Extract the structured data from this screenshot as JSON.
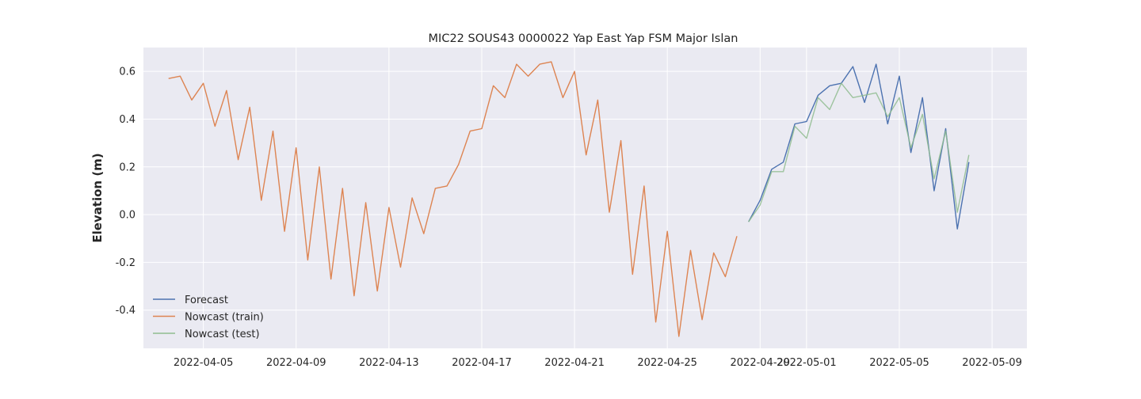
{
  "chart_data": {
    "type": "line",
    "title": "MIC22 SOUS43 0000022 Yap East Yap FSM Major Islan",
    "xlabel": "",
    "ylabel": "Elevation (m)",
    "xlim": [
      "2022-04-02T10:00",
      "2022-05-10T12:00"
    ],
    "ylim": [
      -0.56,
      0.7
    ],
    "x_ticks": [
      "2022-04-05",
      "2022-04-09",
      "2022-04-13",
      "2022-04-17",
      "2022-04-21",
      "2022-04-25",
      "2022-04-29",
      "2022-05-01",
      "2022-05-05",
      "2022-05-09"
    ],
    "y_ticks": [
      -0.4,
      -0.2,
      0.0,
      0.2,
      0.4,
      0.6
    ],
    "grid": true,
    "legend_position": "lower-left",
    "background": "#eaeaf2",
    "series": [
      {
        "name": "Forecast",
        "color": "#4c72b0",
        "x": [
          "2022-04-28T12:00",
          "2022-04-29T00:00",
          "2022-04-29T12:00",
          "2022-04-30T00:00",
          "2022-04-30T12:00",
          "2022-05-01T00:00",
          "2022-05-01T12:00",
          "2022-05-02T00:00",
          "2022-05-02T12:00",
          "2022-05-03T00:00",
          "2022-05-03T12:00",
          "2022-05-04T00:00",
          "2022-05-04T12:00",
          "2022-05-05T00:00",
          "2022-05-05T12:00",
          "2022-05-06T00:00",
          "2022-05-06T12:00",
          "2022-05-07T00:00",
          "2022-05-07T12:00",
          "2022-05-08T00:00"
        ],
        "y": [
          -0.03,
          0.06,
          0.19,
          0.22,
          0.38,
          0.39,
          0.5,
          0.54,
          0.55,
          0.62,
          0.47,
          0.63,
          0.38,
          0.58,
          0.26,
          0.49,
          0.1,
          0.36,
          -0.06,
          0.22
        ]
      },
      {
        "name": "Nowcast (train)",
        "color": "#dd8452",
        "x": [
          "2022-04-03T12:00",
          "2022-04-04T00:00",
          "2022-04-04T12:00",
          "2022-04-05T00:00",
          "2022-04-05T12:00",
          "2022-04-06T00:00",
          "2022-04-06T12:00",
          "2022-04-07T00:00",
          "2022-04-07T12:00",
          "2022-04-08T00:00",
          "2022-04-08T12:00",
          "2022-04-09T00:00",
          "2022-04-09T12:00",
          "2022-04-10T00:00",
          "2022-04-10T12:00",
          "2022-04-11T00:00",
          "2022-04-11T12:00",
          "2022-04-12T00:00",
          "2022-04-12T12:00",
          "2022-04-13T00:00",
          "2022-04-13T12:00",
          "2022-04-14T00:00",
          "2022-04-14T12:00",
          "2022-04-15T00:00",
          "2022-04-15T12:00",
          "2022-04-16T00:00",
          "2022-04-16T12:00",
          "2022-04-17T00:00",
          "2022-04-17T12:00",
          "2022-04-18T00:00",
          "2022-04-18T12:00",
          "2022-04-19T00:00",
          "2022-04-19T12:00",
          "2022-04-20T00:00",
          "2022-04-20T12:00",
          "2022-04-21T00:00",
          "2022-04-21T12:00",
          "2022-04-22T00:00",
          "2022-04-22T12:00",
          "2022-04-23T00:00",
          "2022-04-23T12:00",
          "2022-04-24T00:00",
          "2022-04-24T12:00",
          "2022-04-25T00:00",
          "2022-04-25T12:00",
          "2022-04-26T00:00",
          "2022-04-26T12:00",
          "2022-04-27T00:00",
          "2022-04-27T12:00",
          "2022-04-28T00:00"
        ],
        "y": [
          0.57,
          0.58,
          0.48,
          0.55,
          0.37,
          0.52,
          0.23,
          0.45,
          0.06,
          0.35,
          -0.07,
          0.28,
          -0.19,
          0.2,
          -0.27,
          0.11,
          -0.34,
          0.05,
          -0.32,
          0.03,
          -0.22,
          0.07,
          -0.08,
          0.11,
          0.12,
          0.21,
          0.35,
          0.36,
          0.54,
          0.49,
          0.63,
          0.58,
          0.63,
          0.64,
          0.49,
          0.6,
          0.25,
          0.48,
          0.01,
          0.31,
          -0.25,
          0.12,
          -0.45,
          -0.07,
          -0.51,
          -0.15,
          -0.44,
          -0.16,
          -0.26,
          -0.09
        ]
      },
      {
        "name": "Nowcast (test)",
        "color": "#8fbc8f",
        "x": [
          "2022-04-28T12:00",
          "2022-04-29T00:00",
          "2022-04-29T12:00",
          "2022-04-30T00:00",
          "2022-04-30T12:00",
          "2022-05-01T00:00",
          "2022-05-01T12:00",
          "2022-05-02T00:00",
          "2022-05-02T12:00",
          "2022-05-03T00:00",
          "2022-05-03T12:00",
          "2022-05-04T00:00",
          "2022-05-04T12:00",
          "2022-05-05T00:00",
          "2022-05-05T12:00",
          "2022-05-06T00:00",
          "2022-05-06T12:00",
          "2022-05-07T00:00",
          "2022-05-07T12:00",
          "2022-05-08T00:00"
        ],
        "y": [
          -0.03,
          0.04,
          0.18,
          0.18,
          0.37,
          0.32,
          0.49,
          0.44,
          0.55,
          0.49,
          0.5,
          0.51,
          0.41,
          0.49,
          0.28,
          0.42,
          0.15,
          0.35,
          0.01,
          0.25
        ]
      }
    ]
  }
}
